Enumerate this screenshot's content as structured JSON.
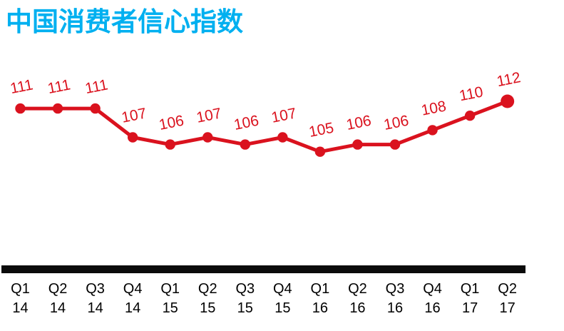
{
  "chart_data": {
    "type": "line",
    "title": "中国消费者信心指数",
    "title_color": "#00B0F0",
    "categories": [
      "Q1 14",
      "Q2 14",
      "Q3 14",
      "Q4 14",
      "Q1 15",
      "Q2 15",
      "Q3 15",
      "Q4 15",
      "Q1 16",
      "Q2 16",
      "Q3 16",
      "Q4 16",
      "Q1 17",
      "Q2 17"
    ],
    "values": [
      111,
      111,
      111,
      107,
      106,
      107,
      106,
      107,
      105,
      106,
      106,
      108,
      110,
      112
    ],
    "series_color": "#DA121E",
    "data_labels": true,
    "data_label_rotation_deg": -11,
    "marker": "circle",
    "last_point_emphasized": true,
    "xlabel": "",
    "ylabel": "",
    "ylim": [
      104,
      113
    ],
    "grid": false,
    "legend": "none"
  },
  "axis": {
    "line_color": "#0B0B0B",
    "label_color": "#000000"
  }
}
